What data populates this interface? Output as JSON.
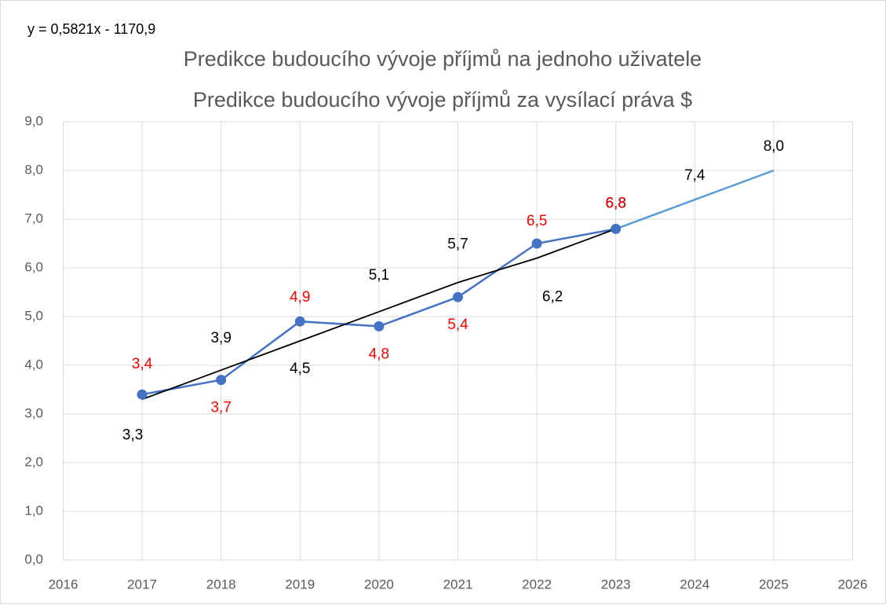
{
  "chart_data": {
    "type": "line",
    "annotation": "y = 0,5821x - 1170,9",
    "title": "Predikce budoucího vývoje příjmů na jednoho uživatele",
    "subtitle": "Predikce budoucího vývoje příjmů za vysílací práva  $",
    "xlim": [
      2016,
      2026
    ],
    "xticks": [
      2016,
      2017,
      2018,
      2019,
      2020,
      2021,
      2022,
      2023,
      2024,
      2025,
      2026
    ],
    "ylim": [
      0,
      9
    ],
    "yticks": [
      {
        "value": 0,
        "label": "0,0"
      },
      {
        "value": 1,
        "label": "1,0"
      },
      {
        "value": 2,
        "label": "2,0"
      },
      {
        "value": 3,
        "label": "3,0"
      },
      {
        "value": 4,
        "label": "4,0"
      },
      {
        "value": 5,
        "label": "5,0"
      },
      {
        "value": 6,
        "label": "6,0"
      },
      {
        "value": 7,
        "label": "7,0"
      },
      {
        "value": 8,
        "label": "8,0"
      },
      {
        "value": 9,
        "label": "9,0"
      }
    ],
    "grid": true,
    "series": [
      {
        "color": "#4472c4",
        "label_color": "#ff0000",
        "markers": true,
        "x": [
          2017,
          2018,
          2019,
          2020,
          2021,
          2022,
          2023
        ],
        "values": [
          3.4,
          3.7,
          4.9,
          4.8,
          5.4,
          6.5,
          6.8
        ],
        "value_labels": [
          "3,4",
          "3,7",
          "4,9",
          "4,8",
          "5,4",
          "6,5",
          "6,8"
        ]
      },
      {
        "color": "#000000",
        "label_color": "#000000",
        "markers": false,
        "x": [
          2017,
          2018,
          2019,
          2020,
          2021,
          2022,
          2023
        ],
        "values": [
          3.3,
          3.9,
          4.5,
          5.1,
          5.7,
          6.2,
          6.8
        ],
        "value_labels": [
          "3,3",
          "3,9",
          "4,5",
          "5,1",
          "5,7",
          "6,2",
          "6,8"
        ]
      },
      {
        "color": "#5b9bd5",
        "label_color": "#000000",
        "markers": false,
        "x": [
          2023,
          2024,
          2025
        ],
        "values": [
          6.8,
          7.4,
          8.0
        ],
        "value_labels": [
          "6,8",
          "7,4",
          "8,0"
        ]
      }
    ]
  }
}
